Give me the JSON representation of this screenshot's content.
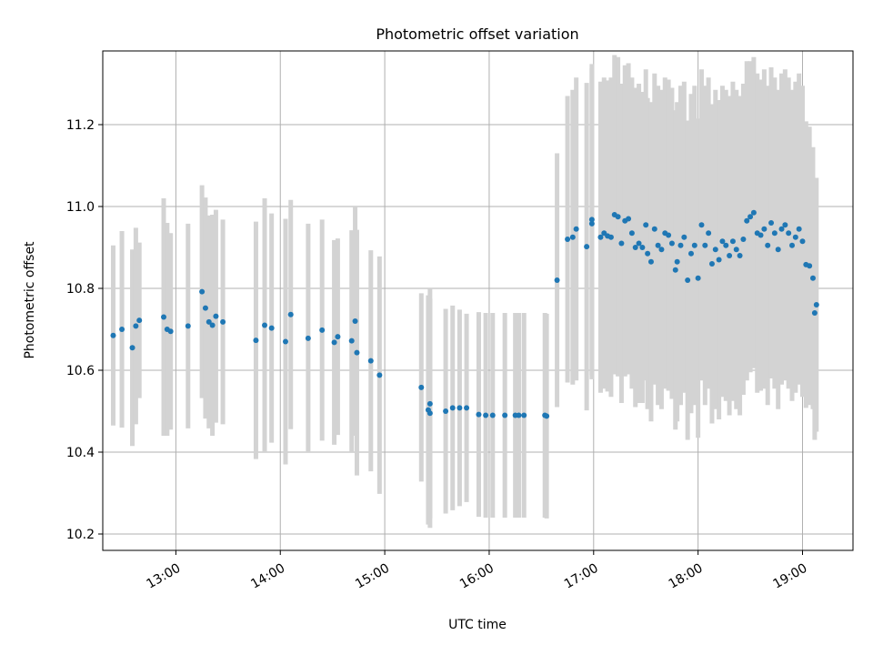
{
  "chart_data": {
    "type": "scatter",
    "title": "Photometric offset variation",
    "xlabel": "UTC time",
    "ylabel": "Photometric offset",
    "x_unit": "UTC time (HH:MM)",
    "xlim": [
      "12:18",
      "19:29"
    ],
    "ylim": [
      10.16,
      11.38
    ],
    "x_ticks": [
      "13:00",
      "14:00",
      "15:00",
      "16:00",
      "17:00",
      "18:00",
      "19:00"
    ],
    "y_ticks": [
      "10.2",
      "10.4",
      "10.6",
      "10.8",
      "11.0",
      "11.2"
    ],
    "grid": true,
    "legend": "none",
    "colors": {
      "marker": "#1f77b4",
      "errorbar": "#d3d3d3",
      "grid": "#b0b0b0",
      "axes": "#000000"
    },
    "series": [
      {
        "points": [
          {
            "x": "12:24",
            "y": 10.685,
            "err": 0.22
          },
          {
            "x": "12:29",
            "y": 10.7,
            "err": 0.24
          },
          {
            "x": "12:35",
            "y": 10.655,
            "err": 0.24
          },
          {
            "x": "12:37",
            "y": 10.708,
            "err": 0.24
          },
          {
            "x": "12:39",
            "y": 10.722,
            "err": 0.19
          },
          {
            "x": "12:53",
            "y": 10.73,
            "err": 0.29
          },
          {
            "x": "12:55",
            "y": 10.7,
            "err": 0.26
          },
          {
            "x": "12:57",
            "y": 10.695,
            "err": 0.24
          },
          {
            "x": "13:07",
            "y": 10.708,
            "err": 0.25
          },
          {
            "x": "13:15",
            "y": 10.792,
            "err": 0.26
          },
          {
            "x": "13:17",
            "y": 10.752,
            "err": 0.27
          },
          {
            "x": "13:19",
            "y": 10.718,
            "err": 0.26
          },
          {
            "x": "13:21",
            "y": 10.71,
            "err": 0.27
          },
          {
            "x": "13:23",
            "y": 10.732,
            "err": 0.26
          },
          {
            "x": "13:27",
            "y": 10.718,
            "err": 0.25
          },
          {
            "x": "13:46",
            "y": 10.673,
            "err": 0.29
          },
          {
            "x": "13:51",
            "y": 10.71,
            "err": 0.31
          },
          {
            "x": "13:55",
            "y": 10.703,
            "err": 0.28
          },
          {
            "x": "14:03",
            "y": 10.67,
            "err": 0.3
          },
          {
            "x": "14:06",
            "y": 10.736,
            "err": 0.28
          },
          {
            "x": "14:16",
            "y": 10.678,
            "err": 0.28
          },
          {
            "x": "14:24",
            "y": 10.698,
            "err": 0.27
          },
          {
            "x": "14:31",
            "y": 10.668,
            "err": 0.25
          },
          {
            "x": "14:33",
            "y": 10.682,
            "err": 0.24
          },
          {
            "x": "14:41",
            "y": 10.672,
            "err": 0.27
          },
          {
            "x": "14:43",
            "y": 10.72,
            "err": 0.28
          },
          {
            "x": "14:44",
            "y": 10.643,
            "err": 0.3
          },
          {
            "x": "14:52",
            "y": 10.623,
            "err": 0.27
          },
          {
            "x": "14:57",
            "y": 10.588,
            "err": 0.29
          },
          {
            "x": "15:21",
            "y": 10.558,
            "err": 0.23
          },
          {
            "x": "15:25",
            "y": 10.503,
            "err": 0.28
          },
          {
            "x": "15:26",
            "y": 10.495,
            "err": 0.28
          },
          {
            "x": "15:26",
            "y": 10.518,
            "err": 0.28
          },
          {
            "x": "15:35",
            "y": 10.5,
            "err": 0.25
          },
          {
            "x": "15:39",
            "y": 10.508,
            "err": 0.25
          },
          {
            "x": "15:43",
            "y": 10.508,
            "err": 0.24
          },
          {
            "x": "15:47",
            "y": 10.508,
            "err": 0.23
          },
          {
            "x": "15:54",
            "y": 10.492,
            "err": 0.25
          },
          {
            "x": "15:58",
            "y": 10.49,
            "err": 0.25
          },
          {
            "x": "16:02",
            "y": 10.49,
            "err": 0.25
          },
          {
            "x": "16:09",
            "y": 10.49,
            "err": 0.25
          },
          {
            "x": "16:15",
            "y": 10.49,
            "err": 0.25
          },
          {
            "x": "16:17",
            "y": 10.49,
            "err": 0.25
          },
          {
            "x": "16:20",
            "y": 10.49,
            "err": 0.25
          },
          {
            "x": "16:32",
            "y": 10.49,
            "err": 0.25
          },
          {
            "x": "16:33",
            "y": 10.488,
            "err": 0.25
          },
          {
            "x": "16:39",
            "y": 10.82,
            "err": 0.31
          },
          {
            "x": "16:45",
            "y": 10.92,
            "err": 0.35
          },
          {
            "x": "16:48",
            "y": 10.925,
            "err": 0.36
          },
          {
            "x": "16:50",
            "y": 10.945,
            "err": 0.37
          },
          {
            "x": "16:56",
            "y": 10.902,
            "err": 0.4
          },
          {
            "x": "16:59",
            "y": 10.958,
            "err": 0.38
          },
          {
            "x": "16:59",
            "y": 10.968,
            "err": 0.38
          },
          {
            "x": "17:04",
            "y": 10.925,
            "err": 0.38
          },
          {
            "x": "17:06",
            "y": 10.935,
            "err": 0.38
          },
          {
            "x": "17:08",
            "y": 10.928,
            "err": 0.38
          },
          {
            "x": "17:10",
            "y": 10.925,
            "err": 0.39
          },
          {
            "x": "17:12",
            "y": 10.98,
            "err": 0.39
          },
          {
            "x": "17:14",
            "y": 10.975,
            "err": 0.39
          },
          {
            "x": "17:16",
            "y": 10.91,
            "err": 0.39
          },
          {
            "x": "17:18",
            "y": 10.965,
            "err": 0.38
          },
          {
            "x": "17:20",
            "y": 10.97,
            "err": 0.38
          },
          {
            "x": "17:22",
            "y": 10.935,
            "err": 0.38
          },
          {
            "x": "17:24",
            "y": 10.9,
            "err": 0.39
          },
          {
            "x": "17:26",
            "y": 10.91,
            "err": 0.39
          },
          {
            "x": "17:28",
            "y": 10.9,
            "err": 0.38
          },
          {
            "x": "17:30",
            "y": 10.955,
            "err": 0.38
          },
          {
            "x": "17:31",
            "y": 10.885,
            "err": 0.38
          },
          {
            "x": "17:33",
            "y": 10.865,
            "err": 0.39
          },
          {
            "x": "17:35",
            "y": 10.945,
            "err": 0.38
          },
          {
            "x": "17:37",
            "y": 10.905,
            "err": 0.39
          },
          {
            "x": "17:39",
            "y": 10.895,
            "err": 0.39
          },
          {
            "x": "17:41",
            "y": 10.935,
            "err": 0.38
          },
          {
            "x": "17:43",
            "y": 10.93,
            "err": 0.38
          },
          {
            "x": "17:45",
            "y": 10.91,
            "err": 0.38
          },
          {
            "x": "17:47",
            "y": 10.845,
            "err": 0.39
          },
          {
            "x": "17:48",
            "y": 10.865,
            "err": 0.39
          },
          {
            "x": "17:50",
            "y": 10.905,
            "err": 0.39
          },
          {
            "x": "17:52",
            "y": 10.925,
            "err": 0.38
          },
          {
            "x": "17:54",
            "y": 10.82,
            "err": 0.39
          },
          {
            "x": "17:56",
            "y": 10.885,
            "err": 0.39
          },
          {
            "x": "17:58",
            "y": 10.905,
            "err": 0.39
          },
          {
            "x": "18:00",
            "y": 10.825,
            "err": 0.39
          },
          {
            "x": "18:02",
            "y": 10.955,
            "err": 0.38
          },
          {
            "x": "18:04",
            "y": 10.905,
            "err": 0.39
          },
          {
            "x": "18:06",
            "y": 10.935,
            "err": 0.38
          },
          {
            "x": "18:08",
            "y": 10.86,
            "err": 0.39
          },
          {
            "x": "18:10",
            "y": 10.895,
            "err": 0.39
          },
          {
            "x": "18:12",
            "y": 10.87,
            "err": 0.39
          },
          {
            "x": "18:14",
            "y": 10.915,
            "err": 0.38
          },
          {
            "x": "18:16",
            "y": 10.905,
            "err": 0.38
          },
          {
            "x": "18:18",
            "y": 10.88,
            "err": 0.39
          },
          {
            "x": "18:20",
            "y": 10.915,
            "err": 0.39
          },
          {
            "x": "18:22",
            "y": 10.895,
            "err": 0.39
          },
          {
            "x": "18:24",
            "y": 10.88,
            "err": 0.39
          },
          {
            "x": "18:26",
            "y": 10.92,
            "err": 0.38
          },
          {
            "x": "18:28",
            "y": 10.965,
            "err": 0.39
          },
          {
            "x": "18:30",
            "y": 10.975,
            "err": 0.38
          },
          {
            "x": "18:32",
            "y": 10.985,
            "err": 0.38
          },
          {
            "x": "18:34",
            "y": 10.935,
            "err": 0.39
          },
          {
            "x": "18:36",
            "y": 10.93,
            "err": 0.38
          },
          {
            "x": "18:38",
            "y": 10.945,
            "err": 0.39
          },
          {
            "x": "18:40",
            "y": 10.905,
            "err": 0.39
          },
          {
            "x": "18:42",
            "y": 10.96,
            "err": 0.38
          },
          {
            "x": "18:44",
            "y": 10.935,
            "err": 0.38
          },
          {
            "x": "18:46",
            "y": 10.895,
            "err": 0.39
          },
          {
            "x": "18:48",
            "y": 10.945,
            "err": 0.38
          },
          {
            "x": "18:50",
            "y": 10.955,
            "err": 0.38
          },
          {
            "x": "18:52",
            "y": 10.935,
            "err": 0.38
          },
          {
            "x": "18:54",
            "y": 10.905,
            "err": 0.38
          },
          {
            "x": "18:56",
            "y": 10.925,
            "err": 0.38
          },
          {
            "x": "18:58",
            "y": 10.945,
            "err": 0.38
          },
          {
            "x": "19:00",
            "y": 10.915,
            "err": 0.38
          },
          {
            "x": "19:02",
            "y": 10.858,
            "err": 0.35
          },
          {
            "x": "19:04",
            "y": 10.855,
            "err": 0.34
          },
          {
            "x": "19:06",
            "y": 10.825,
            "err": 0.32
          },
          {
            "x": "19:07",
            "y": 10.74,
            "err": 0.31
          },
          {
            "x": "19:08",
            "y": 10.76,
            "err": 0.31
          }
        ]
      }
    ]
  }
}
